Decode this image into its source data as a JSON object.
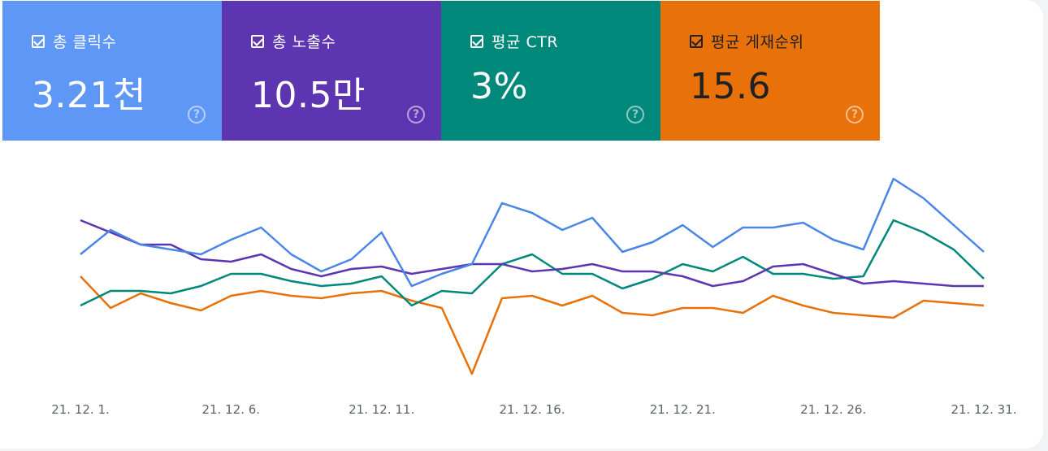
{
  "cards": [
    {
      "label": "총 클릭수",
      "value": "3.21천",
      "bg": "#5e97f6",
      "text_color": "#ffffff"
    },
    {
      "label": "총 노출수",
      "value": "10.5만",
      "bg": "#5e35b1",
      "text_color": "#ffffff"
    },
    {
      "label": "평균 CTR",
      "value": "3%",
      "bg": "#00897b",
      "text_color": "#ffffff"
    },
    {
      "label": "평균 게재순위",
      "value": "15.6",
      "bg": "#e8710a",
      "text_color": "#202124"
    }
  ],
  "help_glyph": "?",
  "chart_data": {
    "type": "line",
    "x": [
      "21. 12. 1.",
      "21. 12. 2.",
      "21. 12. 3.",
      "21. 12. 4.",
      "21. 12. 5.",
      "21. 12. 6.",
      "21. 12. 7.",
      "21. 12. 8.",
      "21. 12. 9.",
      "21. 12. 10.",
      "21. 12. 11.",
      "21. 12. 12.",
      "21. 12. 13.",
      "21. 12. 14.",
      "21. 12. 15.",
      "21. 12. 16.",
      "21. 12. 17.",
      "21. 12. 18.",
      "21. 12. 19.",
      "21. 12. 20.",
      "21. 12. 21.",
      "21. 12. 22.",
      "21. 12. 23.",
      "21. 12. 24.",
      "21. 12. 25.",
      "21. 12. 26.",
      "21. 12. 27.",
      "21. 12. 28.",
      "21. 12. 29.",
      "21. 12. 30.",
      "21. 12. 31."
    ],
    "x_tick_labels": [
      "21. 12. 1.",
      "21. 12. 6.",
      "21. 12. 11.",
      "21. 12. 16.",
      "21. 12. 21.",
      "21. 12. 26.",
      "21. 12. 31."
    ],
    "x_tick_indices": [
      0,
      5,
      10,
      15,
      20,
      25,
      30
    ],
    "ylim": [
      0,
      1
    ],
    "grid": false,
    "legend": "none",
    "series": [
      {
        "name": "총 클릭수",
        "color": "#4a86e8",
        "values": [
          0.59,
          0.69,
          0.63,
          0.61,
          0.59,
          0.65,
          0.7,
          0.59,
          0.52,
          0.57,
          0.68,
          0.46,
          0.51,
          0.55,
          0.8,
          0.76,
          0.69,
          0.74,
          0.6,
          0.64,
          0.71,
          0.62,
          0.7,
          0.7,
          0.72,
          0.65,
          0.61,
          0.9,
          0.82,
          0.71,
          0.6
        ]
      },
      {
        "name": "총 노출수",
        "color": "#5e35b1",
        "values": [
          0.73,
          0.68,
          0.63,
          0.63,
          0.57,
          0.56,
          0.59,
          0.53,
          0.5,
          0.53,
          0.54,
          0.51,
          0.53,
          0.55,
          0.55,
          0.52,
          0.53,
          0.55,
          0.52,
          0.52,
          0.5,
          0.46,
          0.48,
          0.54,
          0.55,
          0.51,
          0.47,
          0.48,
          0.47,
          0.46,
          0.46
        ]
      },
      {
        "name": "평균 CTR",
        "color": "#00897b",
        "values": [
          0.38,
          0.44,
          0.44,
          0.43,
          0.46,
          0.51,
          0.51,
          0.48,
          0.46,
          0.47,
          0.5,
          0.38,
          0.44,
          0.43,
          0.55,
          0.59,
          0.51,
          0.51,
          0.45,
          0.49,
          0.55,
          0.52,
          0.58,
          0.51,
          0.51,
          0.49,
          0.5,
          0.73,
          0.68,
          0.61,
          0.49
        ]
      },
      {
        "name": "평균 게재순위",
        "color": "#e8710a",
        "values": [
          0.5,
          0.37,
          0.43,
          0.39,
          0.36,
          0.42,
          0.44,
          0.42,
          0.41,
          0.43,
          0.44,
          0.4,
          0.37,
          0.1,
          0.41,
          0.42,
          0.38,
          0.42,
          0.35,
          0.34,
          0.37,
          0.37,
          0.35,
          0.42,
          0.38,
          0.35,
          0.34,
          0.33,
          0.4,
          0.39,
          0.38
        ]
      }
    ]
  }
}
